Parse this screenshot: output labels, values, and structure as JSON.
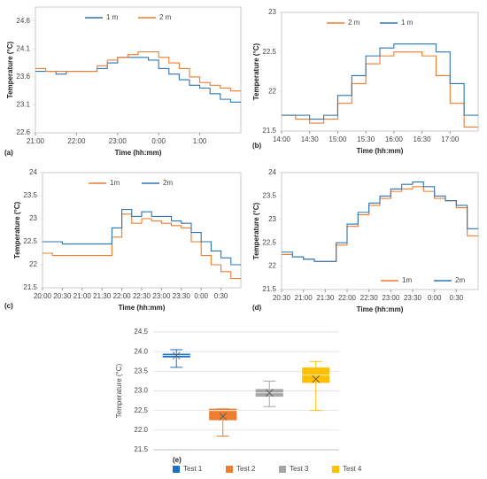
{
  "chart_data": [
    {
      "type": "line",
      "panel_label": "(a)",
      "y_label": "Temperature (°C)",
      "x_label": "Time (hh:mm)",
      "legend": "top-center",
      "categories": [
        "21:00",
        null,
        null,
        null,
        "22:00",
        null,
        null,
        null,
        "23:00",
        null,
        null,
        null,
        "0:00",
        null,
        null,
        null,
        "1:00",
        null,
        null,
        null
      ],
      "ylim": [
        22.6,
        24.85
      ],
      "yticks": [
        22.6,
        23.1,
        23.6,
        24.1,
        24.6
      ],
      "series": [
        {
          "name": "1 m",
          "color": "#2e75b6",
          "values": [
            23.7,
            23.7,
            23.65,
            23.7,
            23.7,
            23.7,
            23.75,
            23.85,
            23.95,
            23.95,
            23.95,
            23.9,
            23.75,
            23.65,
            23.55,
            23.45,
            23.4,
            23.3,
            23.2,
            23.15
          ]
        },
        {
          "name": "2 m",
          "color": "#ed7d31",
          "values": [
            23.75,
            23.7,
            23.7,
            23.7,
            23.7,
            23.7,
            23.8,
            23.9,
            23.95,
            24.0,
            24.05,
            24.05,
            23.95,
            23.85,
            23.75,
            23.6,
            23.5,
            23.45,
            23.4,
            23.35
          ]
        }
      ]
    },
    {
      "type": "line",
      "panel_label": "(b)",
      "y_label": "Temperature (°C)",
      "x_label": "Time (hh:mm)",
      "legend": "top-center",
      "categories": [
        "14:00",
        null,
        "14:30",
        null,
        "15:00",
        null,
        "15:30",
        null,
        "16:00",
        null,
        "16:30",
        null,
        "17:00",
        null
      ],
      "ylim": [
        21.5,
        23
      ],
      "yticks": [
        21.5,
        22,
        22.5,
        23
      ],
      "series": [
        {
          "name": "2 m",
          "color": "#ed7d31",
          "values": [
            21.7,
            21.65,
            21.6,
            21.65,
            21.85,
            22.1,
            22.35,
            22.45,
            22.5,
            22.5,
            22.45,
            22.2,
            21.85,
            21.55
          ]
        },
        {
          "name": "1 m",
          "color": "#2e75b6",
          "values": [
            21.7,
            21.7,
            21.65,
            21.7,
            21.95,
            22.2,
            22.45,
            22.55,
            22.6,
            22.6,
            22.6,
            22.5,
            22.1,
            21.7
          ]
        }
      ]
    },
    {
      "type": "line",
      "panel_label": "(c)",
      "y_label": "Temperature (°C)",
      "x_label": "Time (hh:mm)",
      "legend": "top-center",
      "categories": [
        "20:00",
        null,
        "20:30",
        null,
        "21:00",
        null,
        "21:30",
        null,
        "22:00",
        null,
        "22:30",
        null,
        "23:00",
        null,
        "23:30",
        null,
        "0:00",
        null,
        "0:30",
        null
      ],
      "ylim": [
        21.5,
        24
      ],
      "yticks": [
        21.5,
        22,
        22.5,
        23,
        23.5,
        24
      ],
      "series": [
        {
          "name": "1m",
          "color": "#ed7d31",
          "values": [
            22.25,
            22.2,
            22.2,
            22.2,
            22.2,
            22.2,
            22.2,
            22.6,
            23.1,
            22.9,
            23.0,
            22.95,
            22.9,
            22.85,
            22.8,
            22.5,
            22.2,
            22.0,
            21.85,
            21.7
          ]
        },
        {
          "name": "2m",
          "color": "#2e75b6",
          "values": [
            22.5,
            22.5,
            22.45,
            22.45,
            22.45,
            22.45,
            22.45,
            22.8,
            23.2,
            23.05,
            23.15,
            23.05,
            23.05,
            22.95,
            22.9,
            22.7,
            22.5,
            22.3,
            22.15,
            22.0
          ]
        }
      ]
    },
    {
      "type": "line",
      "panel_label": "(d)",
      "y_label": "Temperature (°C)",
      "x_label": "Time (hh:mm)",
      "legend": "bottom-right",
      "categories": [
        "20:30",
        null,
        "21:00",
        null,
        "21:30",
        null,
        "22:00",
        null,
        "22:30",
        null,
        "23:00",
        null,
        "23:30",
        null,
        "0:00",
        null,
        "0:30",
        null
      ],
      "ylim": [
        21.5,
        24
      ],
      "yticks": [
        21.5,
        22,
        22.5,
        23,
        23.5,
        24
      ],
      "series": [
        {
          "name": "1m",
          "color": "#ed7d31",
          "values": [
            22.25,
            22.2,
            22.15,
            22.1,
            22.1,
            22.45,
            22.85,
            23.1,
            23.3,
            23.45,
            23.6,
            23.65,
            23.7,
            23.6,
            23.45,
            23.4,
            23.25,
            22.65
          ]
        },
        {
          "name": "2m",
          "color": "#2e75b6",
          "values": [
            22.3,
            22.2,
            22.15,
            22.1,
            22.1,
            22.5,
            22.9,
            23.15,
            23.35,
            23.5,
            23.65,
            23.75,
            23.8,
            23.7,
            23.5,
            23.4,
            23.3,
            22.8
          ]
        }
      ]
    },
    {
      "type": "box",
      "panel_label": "(e)",
      "y_label": "Temperature (°C)",
      "legend": "bottom",
      "grid": true,
      "ylim": [
        21.5,
        24.5
      ],
      "yticks": [
        21.5,
        {
          "value": 22,
          "label": "22.0"
        },
        22.5,
        {
          "value": 23,
          "label": "23.0"
        },
        23.5,
        {
          "value": 24,
          "label": "24.0"
        },
        24.5
      ],
      "series": [
        {
          "name": "Test 1",
          "color": "#1f6fc5",
          "min": 23.6,
          "q1": 23.85,
          "median": 23.9,
          "q3": 23.95,
          "max": 24.05,
          "mean": 23.9
        },
        {
          "name": "Test 2",
          "color": "#ed7d31",
          "min": 21.85,
          "q1": 22.25,
          "median": 22.5,
          "q3": 22.55,
          "max": 22.55,
          "mean": 22.35
        },
        {
          "name": "Test 3",
          "color": "#a5a5a5",
          "min": 22.6,
          "q1": 22.85,
          "median": 22.95,
          "q3": 23.05,
          "max": 23.25,
          "mean": 22.95
        },
        {
          "name": "Test 4",
          "color": "#ffc000",
          "min": 22.5,
          "q1": 23.2,
          "median": 23.4,
          "q3": 23.6,
          "max": 23.75,
          "mean": 23.3
        }
      ]
    }
  ]
}
